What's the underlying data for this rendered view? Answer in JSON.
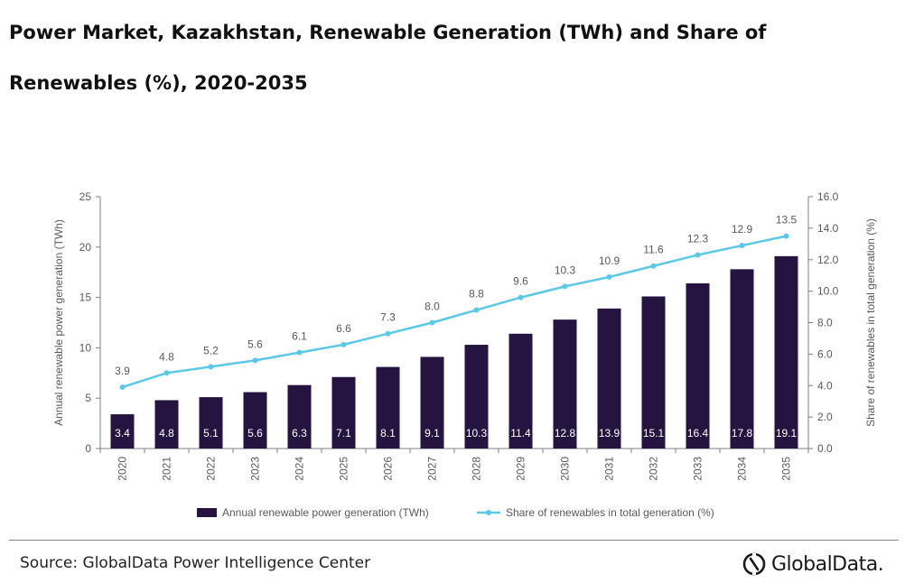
{
  "title": "Power Market, Kazakhstan, Renewable Generation (TWh) and Share of Renewables (%), 2020-2035",
  "source": "Source: GlobalData Power Intelligence Center",
  "brand": "GlobalData.",
  "colors": {
    "bar": "#261440",
    "line": "#5bc8e8",
    "axis": "#7f7f7f",
    "text": "#595959"
  },
  "chart_data": {
    "type": "bar",
    "categories": [
      "2020",
      "2021",
      "2022",
      "2023",
      "2024",
      "2025",
      "2026",
      "2027",
      "2028",
      "2029",
      "2030",
      "2031",
      "2032",
      "2033",
      "2034",
      "2035"
    ],
    "series": [
      {
        "name": "Annual renewable power generation (TWh)",
        "type": "bar",
        "axis": "left",
        "values": [
          3.4,
          4.8,
          5.1,
          5.6,
          6.3,
          7.1,
          8.1,
          9.1,
          10.3,
          11.4,
          12.8,
          13.9,
          15.1,
          16.4,
          17.8,
          19.1
        ],
        "labels": [
          "3.4",
          "4.8",
          "5.1",
          "5.6",
          "6.3",
          "7.1",
          "8.1",
          "9.1",
          "10.3",
          "11.4",
          "12.8",
          "13.9",
          "15.1",
          "16.4",
          "17.8",
          "19.1"
        ]
      },
      {
        "name": "Share of renewables in total generation (%)",
        "type": "line",
        "axis": "right",
        "values": [
          3.9,
          4.8,
          5.2,
          5.6,
          6.1,
          6.6,
          7.3,
          8.0,
          8.8,
          9.6,
          10.3,
          10.9,
          11.6,
          12.3,
          12.9,
          13.5
        ],
        "labels": [
          "3.9",
          "4.8",
          "5.2",
          "5.6",
          "6.1",
          "6.6",
          "7.3",
          "8.0",
          "8.8",
          "9.6",
          "10.3",
          "10.9",
          "11.6",
          "12.3",
          "12.9",
          "13.5"
        ]
      }
    ],
    "ylabel": "Annual renewable power generation (TWh)",
    "ylabel_right": "Share of renewables in total generation (%)",
    "ylim": [
      0,
      25
    ],
    "ylim_right": [
      0,
      16
    ],
    "yticks": [
      "0",
      "5",
      "10",
      "15",
      "20",
      "25"
    ],
    "yticks_right": [
      "0.0",
      "2.0",
      "4.0",
      "6.0",
      "8.0",
      "10.0",
      "12.0",
      "14.0",
      "16.0"
    ],
    "grid": false,
    "legend": "bottom"
  }
}
